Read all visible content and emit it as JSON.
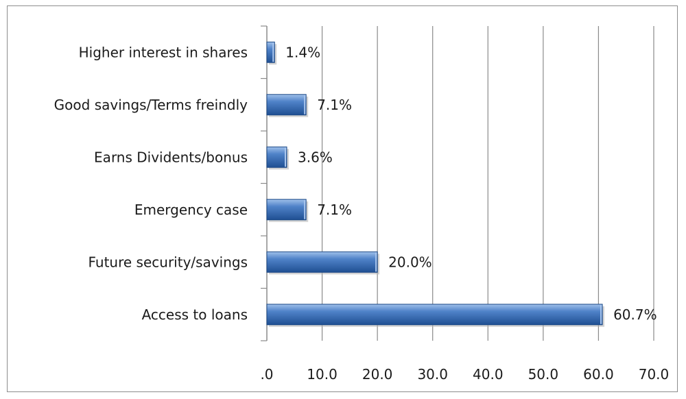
{
  "chart_data": {
    "type": "bar",
    "orientation": "horizontal",
    "categories": [
      "Access to loans",
      "Future security/savings",
      "Emergency case",
      "Earns Dividents/bonus",
      "Good savings/Terms freindly",
      "Higher interest in shares"
    ],
    "values": [
      60.7,
      20.0,
      7.1,
      3.6,
      7.1,
      1.4
    ],
    "data_labels": [
      "60.7%",
      "20.0%",
      "7.1%",
      "3.6%",
      "7.1%",
      "1.4%"
    ],
    "xlim": [
      0,
      70
    ],
    "ticks": [
      0,
      10,
      20,
      30,
      40,
      50,
      60,
      70
    ],
    "tick_labels": [
      ".0",
      "10.0",
      "20.0",
      "30.0",
      "40.0",
      "50.0",
      "60.0",
      "70.0"
    ],
    "grid": true,
    "legend": false,
    "title": "",
    "xlabel": "",
    "ylabel": "",
    "bar_color": "#3a6fb8"
  }
}
